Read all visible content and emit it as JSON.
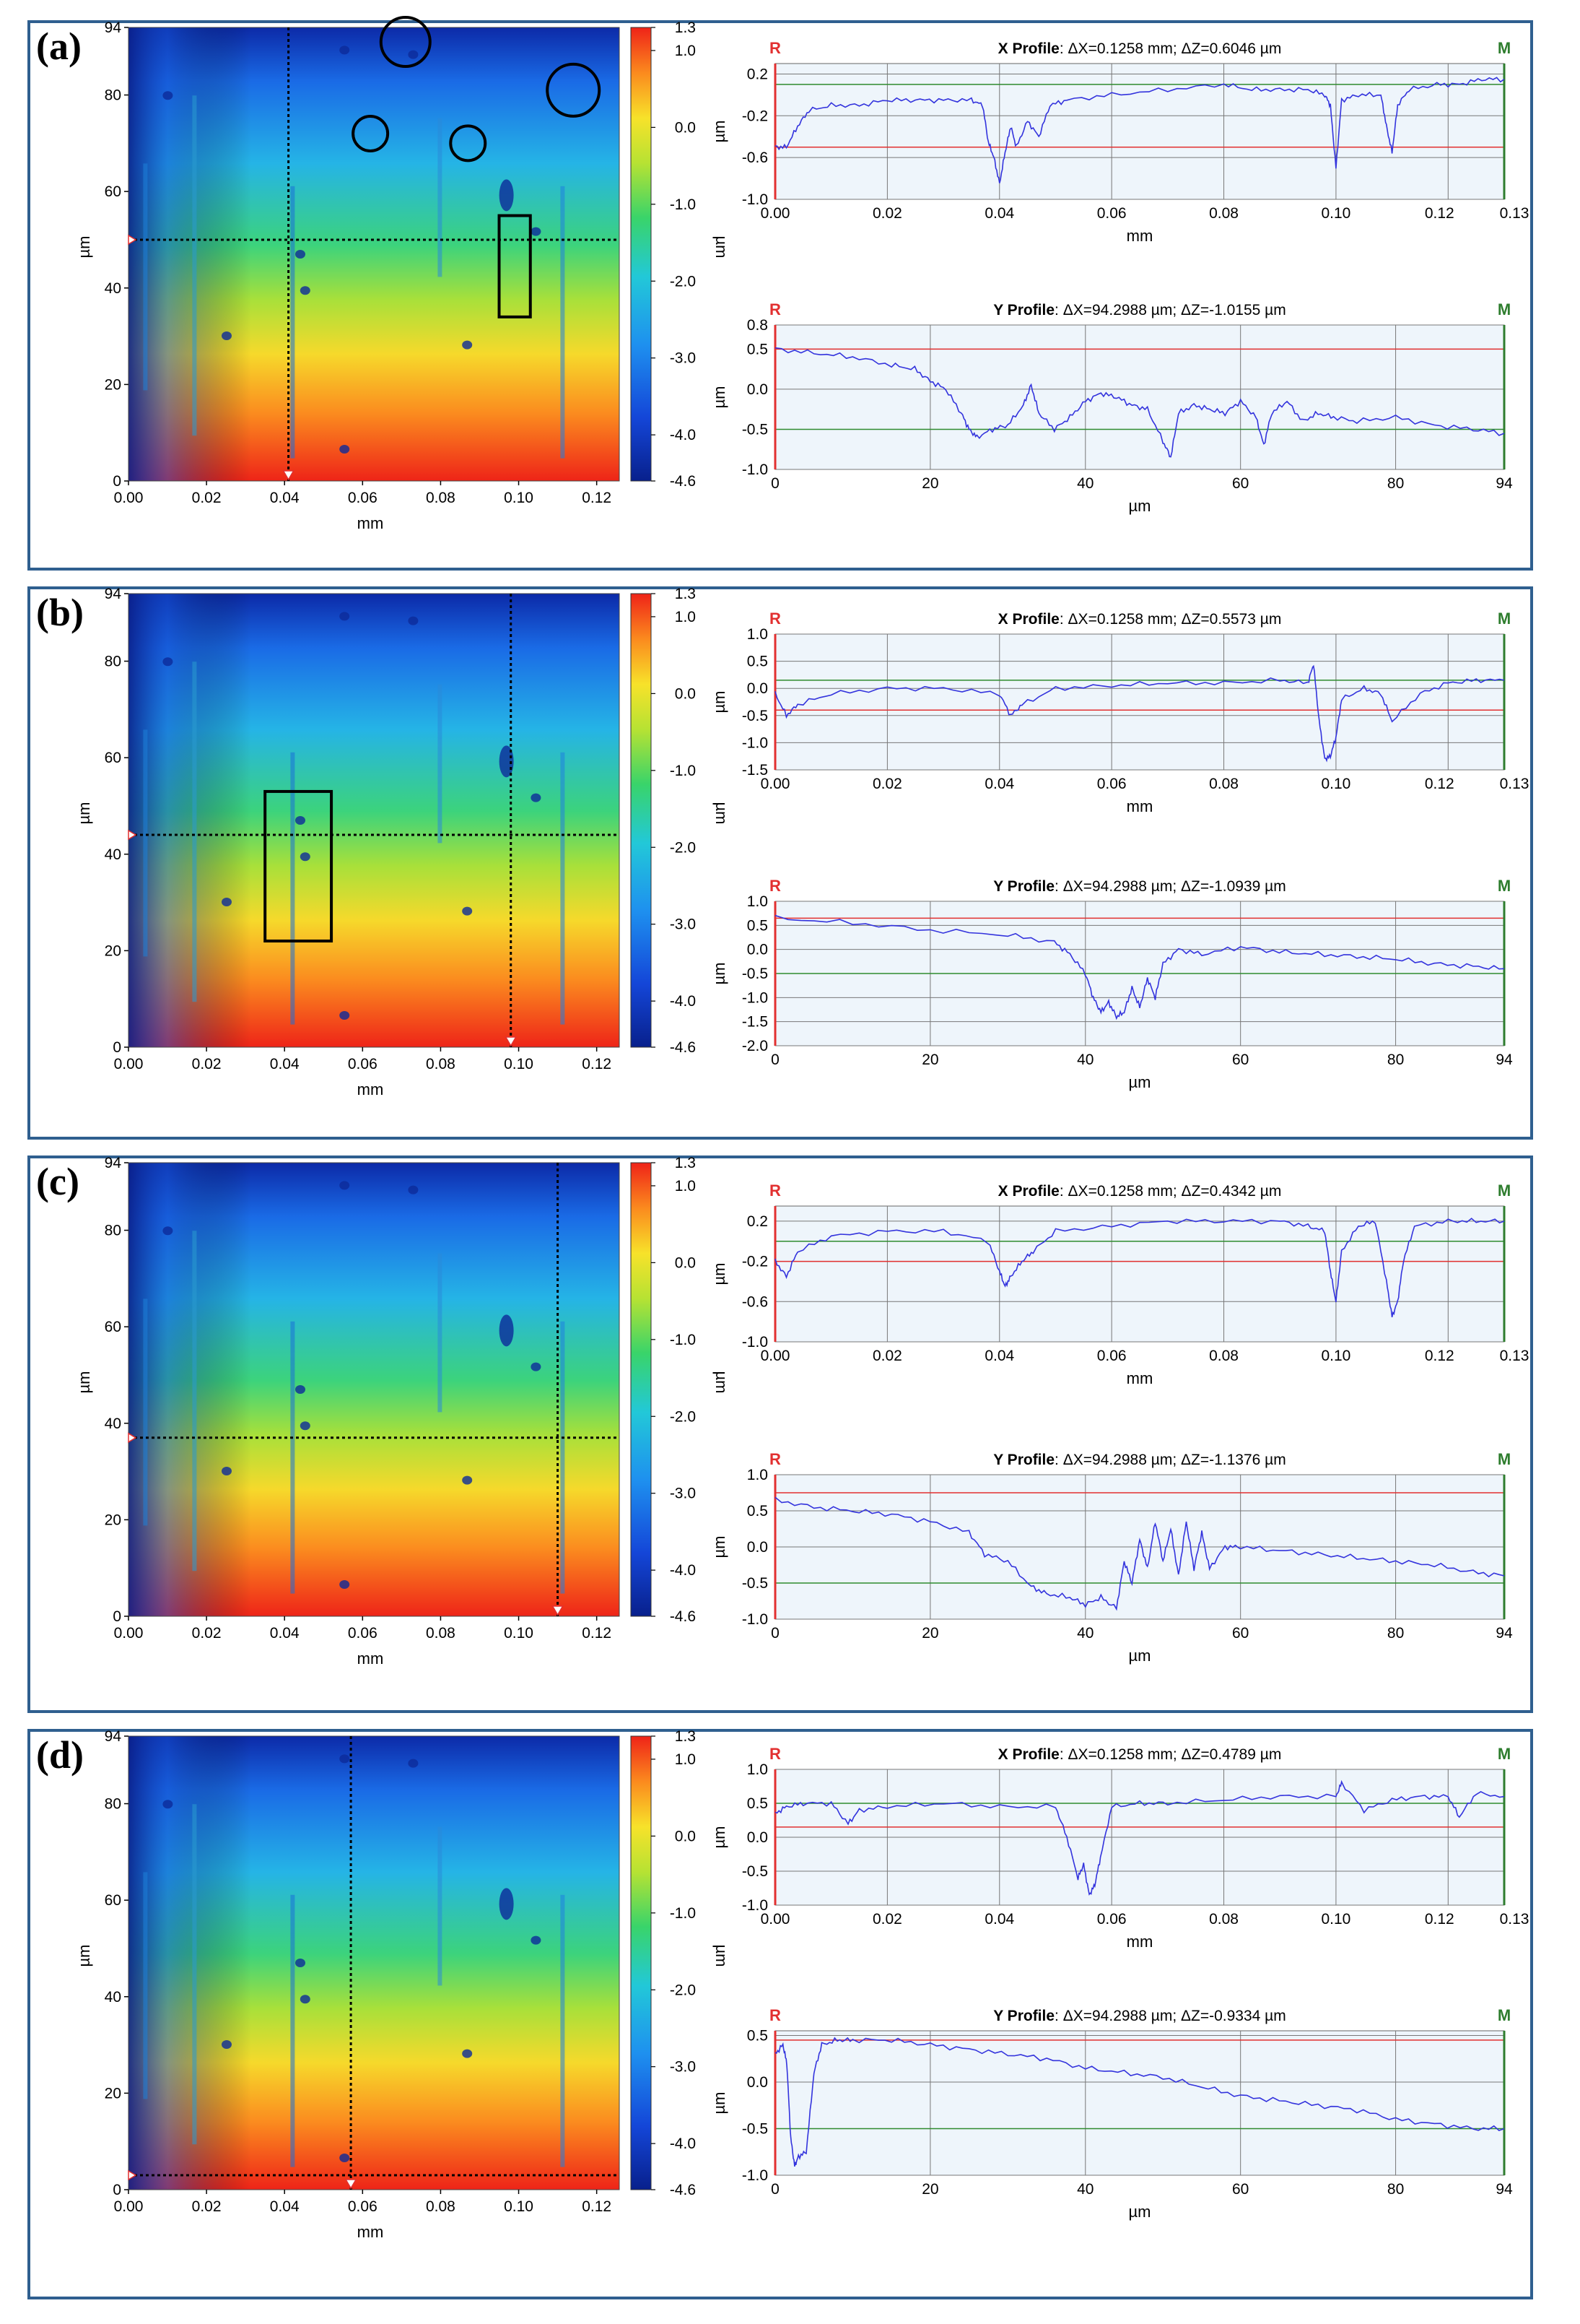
{
  "colors": {
    "border": "#2f5f8f",
    "profile": "#3333dd",
    "red_ref": "#e23030",
    "green_ref": "#2e8b2e",
    "r_marker": "#e23030",
    "m_marker": "#2e7d2e"
  },
  "labels": {
    "r_marker": "R",
    "m_marker": "M",
    "map_ylabel": "µm",
    "map_xlabel": "mm",
    "cbar_label": "µm",
    "xprof_xlabel": "mm",
    "yprof_xlabel": "µm",
    "prof_ylabel": "µm",
    "x_profile_bold": "X Profile",
    "y_profile_bold": "Y Profile"
  },
  "chart_data": [
    {
      "panel": "(a)",
      "type": "line",
      "height_map": {
        "xlabel": "mm",
        "ylabel": "µm",
        "x_ticks": [
          "0.00",
          "0.02",
          "0.04",
          "0.06",
          "0.08",
          "0.10",
          "0.12"
        ],
        "xlim": [
          0,
          0.1258
        ],
        "y_ticks": [
          "0",
          "20",
          "40",
          "60",
          "80",
          "94"
        ],
        "ylim": [
          0,
          94
        ],
        "colorbar": {
          "label": "µm",
          "ticks": [
            "1.3",
            "1.0",
            "0.0",
            "-1.0",
            "-2.0",
            "-3.0",
            "-4.0",
            "-4.6"
          ],
          "range": [
            -4.6,
            1.3
          ]
        },
        "vertical_cut_x_mm": 0.041,
        "horizontal_cut_y_um": 50,
        "annotations": [
          {
            "shape": "circle",
            "x_mm": 0.071,
            "y_um": 91
          },
          {
            "shape": "circle",
            "x_mm": 0.062,
            "y_um": 72
          },
          {
            "shape": "circle",
            "x_mm": 0.087,
            "y_um": 70
          },
          {
            "shape": "circle",
            "x_mm": 0.114,
            "y_um": 81
          },
          {
            "shape": "rect",
            "x_mm": [
              0.095,
              0.103
            ],
            "y_um": [
              34,
              55
            ]
          }
        ]
      },
      "x_profile": {
        "title": "X Profile",
        "stats": ": ΔX=0.1258 mm; ΔZ=0.6046 µm",
        "xlabel": "mm",
        "ylabel": "µm",
        "x_ticks": [
          "0.00",
          "0.02",
          "0.04",
          "0.06",
          "0.08",
          "0.10",
          "0.12",
          "0.13"
        ],
        "xlim": [
          0,
          0.13
        ],
        "y_ticks": [
          "0.2",
          "-0.2",
          "-0.6",
          "-1.0"
        ],
        "ylim": [
          -1.0,
          0.3
        ],
        "ref_red": -0.5,
        "ref_green": 0.1,
        "x": [
          0,
          0.002,
          0.004,
          0.006,
          0.01,
          0.015,
          0.02,
          0.025,
          0.03,
          0.035,
          0.037,
          0.038,
          0.039,
          0.04,
          0.041,
          0.042,
          0.043,
          0.045,
          0.047,
          0.049,
          0.052,
          0.06,
          0.07,
          0.08,
          0.085,
          0.09,
          0.095,
          0.098,
          0.099,
          0.1,
          0.101,
          0.104,
          0.108,
          0.109,
          0.11,
          0.111,
          0.113,
          0.118,
          0.122,
          0.126,
          0.13
        ],
        "values": [
          -0.5,
          -0.5,
          -0.3,
          -0.15,
          -0.1,
          -0.1,
          -0.05,
          -0.05,
          -0.05,
          -0.05,
          -0.1,
          -0.45,
          -0.6,
          -0.85,
          -0.55,
          -0.3,
          -0.5,
          -0.25,
          -0.4,
          -0.1,
          -0.05,
          0.0,
          0.05,
          0.1,
          0.05,
          0.05,
          0.05,
          0.0,
          -0.1,
          -0.7,
          -0.05,
          0.0,
          0.0,
          -0.3,
          -0.55,
          -0.1,
          0.05,
          0.1,
          0.1,
          0.15,
          0.15
        ]
      },
      "y_profile": {
        "title": "Y Profile",
        "stats": ": ΔX=94.2988 µm; ΔZ=-1.0155 µm",
        "xlabel": "µm",
        "ylabel": "µm",
        "x_ticks": [
          "0",
          "20",
          "40",
          "60",
          "80",
          "94"
        ],
        "xlim": [
          0,
          94
        ],
        "y_ticks": [
          "0.8",
          "0.5",
          "0.0",
          "-0.5",
          "-1.0"
        ],
        "ylim": [
          -1.0,
          0.8
        ],
        "ref_red": 0.5,
        "ref_green": -0.5,
        "x": [
          0,
          5,
          10,
          15,
          18,
          20,
          22,
          24,
          25,
          26,
          28,
          30,
          32,
          33,
          34,
          36,
          38,
          40,
          42,
          44,
          46,
          48,
          50,
          51,
          52,
          54,
          56,
          58,
          60,
          62,
          63,
          64,
          66,
          68,
          70,
          72,
          75,
          80,
          85,
          90,
          94
        ],
        "values": [
          0.5,
          0.45,
          0.4,
          0.3,
          0.25,
          0.1,
          0.0,
          -0.3,
          -0.5,
          -0.6,
          -0.5,
          -0.45,
          -0.2,
          0.05,
          -0.3,
          -0.5,
          -0.35,
          -0.15,
          -0.05,
          -0.1,
          -0.2,
          -0.25,
          -0.65,
          -0.85,
          -0.3,
          -0.2,
          -0.25,
          -0.3,
          -0.15,
          -0.35,
          -0.7,
          -0.3,
          -0.15,
          -0.4,
          -0.3,
          -0.35,
          -0.4,
          -0.35,
          -0.45,
          -0.5,
          -0.55
        ]
      }
    },
    {
      "panel": "(b)",
      "type": "line",
      "height_map": {
        "xlabel": "mm",
        "ylabel": "µm",
        "x_ticks": [
          "0.00",
          "0.02",
          "0.04",
          "0.06",
          "0.08",
          "0.10",
          "0.12"
        ],
        "xlim": [
          0,
          0.1258
        ],
        "y_ticks": [
          "0",
          "20",
          "40",
          "60",
          "80",
          "94"
        ],
        "ylim": [
          0,
          94
        ],
        "colorbar": {
          "label": "µm",
          "ticks": [
            "1.3",
            "1.0",
            "0.0",
            "-1.0",
            "-2.0",
            "-3.0",
            "-4.0",
            "-4.6"
          ],
          "range": [
            -4.6,
            1.3
          ]
        },
        "vertical_cut_x_mm": 0.098,
        "horizontal_cut_y_um": 44,
        "annotations": [
          {
            "shape": "rect",
            "x_mm": [
              0.035,
              0.052
            ],
            "y_um": [
              22,
              53
            ]
          }
        ]
      },
      "x_profile": {
        "title": "X Profile",
        "stats": ": ΔX=0.1258 mm; ΔZ=0.5573 µm",
        "xlabel": "mm",
        "ylabel": "µm",
        "x_ticks": [
          "0.00",
          "0.02",
          "0.04",
          "0.06",
          "0.08",
          "0.10",
          "0.12",
          "0.13"
        ],
        "xlim": [
          0,
          0.13
        ],
        "y_ticks": [
          "1.0",
          "0.5",
          "0.0",
          "-0.5",
          "-1.0",
          "-1.5"
        ],
        "ylim": [
          -1.5,
          1.0
        ],
        "ref_red": -0.4,
        "ref_green": 0.15,
        "x": [
          0,
          0.002,
          0.004,
          0.01,
          0.02,
          0.03,
          0.04,
          0.042,
          0.044,
          0.05,
          0.06,
          0.07,
          0.08,
          0.09,
          0.095,
          0.096,
          0.097,
          0.098,
          0.099,
          0.1,
          0.101,
          0.105,
          0.108,
          0.11,
          0.115,
          0.12,
          0.125,
          0.13
        ],
        "values": [
          -0.1,
          -0.5,
          -0.3,
          -0.1,
          0.0,
          0.0,
          -0.1,
          -0.5,
          -0.3,
          0.0,
          0.05,
          0.1,
          0.1,
          0.15,
          0.1,
          0.45,
          -0.6,
          -1.3,
          -1.25,
          -0.9,
          -0.2,
          0.0,
          -0.1,
          -0.6,
          -0.1,
          0.1,
          0.15,
          0.15
        ]
      },
      "y_profile": {
        "title": "Y Profile",
        "stats": ": ΔX=94.2988 µm; ΔZ=-1.0939 µm",
        "xlabel": "µm",
        "ylabel": "µm",
        "x_ticks": [
          "0",
          "20",
          "40",
          "60",
          "80",
          "94"
        ],
        "xlim": [
          0,
          94
        ],
        "y_ticks": [
          "1.0",
          "0.5",
          "0.0",
          "-0.5",
          "-1.0",
          "-1.5",
          "-2.0"
        ],
        "ylim": [
          -2.0,
          1.0
        ],
        "ref_red": 0.65,
        "ref_green": -0.5,
        "x": [
          0,
          10,
          20,
          30,
          36,
          38,
          40,
          41,
          42,
          43,
          44,
          45,
          46,
          47,
          48,
          49,
          50,
          52,
          55,
          60,
          65,
          70,
          75,
          80,
          85,
          90,
          94
        ],
        "values": [
          0.65,
          0.55,
          0.4,
          0.3,
          0.15,
          -0.1,
          -0.5,
          -1.0,
          -1.3,
          -1.1,
          -1.4,
          -1.3,
          -0.8,
          -1.2,
          -0.6,
          -1.0,
          -0.3,
          0.0,
          -0.1,
          0.05,
          -0.05,
          -0.1,
          -0.15,
          -0.2,
          -0.3,
          -0.35,
          -0.4
        ]
      }
    },
    {
      "panel": "(c)",
      "type": "line",
      "height_map": {
        "xlabel": "mm",
        "ylabel": "µm",
        "x_ticks": [
          "0.00",
          "0.02",
          "0.04",
          "0.06",
          "0.08",
          "0.10",
          "0.12"
        ],
        "xlim": [
          0,
          0.1258
        ],
        "y_ticks": [
          "0",
          "20",
          "40",
          "60",
          "80",
          "94"
        ],
        "ylim": [
          0,
          94
        ],
        "colorbar": {
          "label": "µm",
          "ticks": [
            "1.3",
            "1.0",
            "0.0",
            "-1.0",
            "-2.0",
            "-3.0",
            "-4.0",
            "-4.6"
          ],
          "range": [
            -4.6,
            1.3
          ]
        },
        "vertical_cut_x_mm": 0.11,
        "horizontal_cut_y_um": 37,
        "annotations": []
      },
      "x_profile": {
        "title": "X Profile",
        "stats": ": ΔX=0.1258 mm; ΔZ=0.4342 µm",
        "xlabel": "mm",
        "ylabel": "µm",
        "x_ticks": [
          "0.00",
          "0.02",
          "0.04",
          "0.06",
          "0.08",
          "0.10",
          "0.12",
          "0.13"
        ],
        "xlim": [
          0,
          0.13
        ],
        "y_ticks": [
          "0.2",
          "-0.2",
          "-0.6",
          "-1.0"
        ],
        "ylim": [
          -1.0,
          0.35
        ],
        "ref_red": -0.2,
        "ref_green": 0.0,
        "x": [
          0,
          0.002,
          0.004,
          0.01,
          0.02,
          0.03,
          0.038,
          0.04,
          0.041,
          0.042,
          0.044,
          0.046,
          0.05,
          0.06,
          0.07,
          0.08,
          0.09,
          0.095,
          0.098,
          0.099,
          0.1,
          0.101,
          0.104,
          0.107,
          0.109,
          0.11,
          0.111,
          0.112,
          0.114,
          0.12,
          0.125,
          0.13
        ],
        "values": [
          -0.2,
          -0.35,
          -0.1,
          0.05,
          0.1,
          0.1,
          0.0,
          -0.3,
          -0.45,
          -0.35,
          -0.2,
          -0.1,
          0.1,
          0.15,
          0.2,
          0.2,
          0.2,
          0.15,
          0.1,
          -0.3,
          -0.6,
          -0.1,
          0.15,
          0.2,
          -0.4,
          -0.75,
          -0.6,
          -0.2,
          0.15,
          0.2,
          0.2,
          0.2
        ]
      },
      "y_profile": {
        "title": "Y Profile",
        "stats": ": ΔX=94.2988 µm; ΔZ=-1.1376 µm",
        "xlabel": "µm",
        "ylabel": "µm",
        "x_ticks": [
          "0",
          "20",
          "40",
          "60",
          "80",
          "94"
        ],
        "xlim": [
          0,
          94
        ],
        "y_ticks": [
          "1.0",
          "0.5",
          "0.0",
          "-0.5",
          "-1.0"
        ],
        "ylim": [
          -1.0,
          1.0
        ],
        "ref_red": 0.75,
        "ref_green": -0.5,
        "x": [
          0,
          5,
          10,
          15,
          20,
          25,
          27,
          30,
          33,
          35,
          38,
          40,
          42,
          44,
          45,
          46,
          47,
          48,
          49,
          50,
          51,
          52,
          53,
          54,
          55,
          56,
          58,
          60,
          65,
          70,
          75,
          80,
          85,
          90,
          94
        ],
        "values": [
          0.65,
          0.55,
          0.5,
          0.45,
          0.35,
          0.2,
          -0.1,
          -0.2,
          -0.55,
          -0.65,
          -0.7,
          -0.8,
          -0.7,
          -0.85,
          -0.2,
          -0.5,
          0.1,
          -0.3,
          0.35,
          -0.2,
          0.25,
          -0.4,
          0.35,
          -0.3,
          0.2,
          -0.3,
          0.0,
          0.0,
          -0.05,
          -0.1,
          -0.15,
          -0.2,
          -0.25,
          -0.35,
          -0.4
        ]
      }
    },
    {
      "panel": "(d)",
      "type": "line",
      "height_map": {
        "xlabel": "mm",
        "ylabel": "µm",
        "x_ticks": [
          "0.00",
          "0.02",
          "0.04",
          "0.06",
          "0.08",
          "0.10",
          "0.12"
        ],
        "xlim": [
          0,
          0.1258
        ],
        "y_ticks": [
          "0",
          "20",
          "40",
          "60",
          "80",
          "94"
        ],
        "ylim": [
          0,
          94
        ],
        "colorbar": {
          "label": "µm",
          "ticks": [
            "1.3",
            "1.0",
            "0.0",
            "-1.0",
            "-2.0",
            "-3.0",
            "-4.0",
            "-4.6"
          ],
          "range": [
            -4.6,
            1.3
          ]
        },
        "vertical_cut_x_mm": 0.057,
        "horizontal_cut_y_um": 3,
        "annotations": []
      },
      "x_profile": {
        "title": "X Profile",
        "stats": ": ΔX=0.1258 mm; ΔZ=0.4789 µm",
        "xlabel": "mm",
        "ylabel": "µm",
        "x_ticks": [
          "0.00",
          "0.02",
          "0.04",
          "0.06",
          "0.08",
          "0.10",
          "0.12",
          "0.13"
        ],
        "xlim": [
          0,
          0.13
        ],
        "y_ticks": [
          "1.0",
          "0.5",
          "0.0",
          "-0.5",
          "-1.0"
        ],
        "ylim": [
          -1.0,
          1.0
        ],
        "ref_red": 0.15,
        "ref_green": 0.5,
        "x": [
          0,
          0.002,
          0.005,
          0.01,
          0.013,
          0.015,
          0.02,
          0.03,
          0.04,
          0.05,
          0.052,
          0.054,
          0.055,
          0.056,
          0.057,
          0.058,
          0.06,
          0.065,
          0.07,
          0.08,
          0.09,
          0.1,
          0.101,
          0.105,
          0.11,
          0.115,
          0.12,
          0.122,
          0.125,
          0.13
        ],
        "values": [
          0.35,
          0.45,
          0.5,
          0.5,
          0.2,
          0.4,
          0.45,
          0.5,
          0.45,
          0.45,
          0.0,
          -0.6,
          -0.4,
          -0.85,
          -0.7,
          -0.3,
          0.45,
          0.5,
          0.5,
          0.55,
          0.6,
          0.6,
          0.8,
          0.4,
          0.55,
          0.6,
          0.6,
          0.3,
          0.65,
          0.6
        ]
      },
      "y_profile": {
        "title": "Y Profile",
        "stats": ": ΔX=94.2988 µm; ΔZ=-0.9334 µm",
        "xlabel": "µm",
        "ylabel": "µm",
        "x_ticks": [
          "0",
          "20",
          "40",
          "60",
          "80",
          "94"
        ],
        "xlim": [
          0,
          94
        ],
        "y_ticks": [
          "0.5",
          "0.0",
          "-0.5",
          "-1.0"
        ],
        "ylim": [
          -1.0,
          0.55
        ],
        "ref_red": 0.45,
        "ref_green": -0.5,
        "x": [
          0,
          1,
          1.5,
          2,
          2.5,
          3,
          4,
          5,
          6,
          8,
          10,
          15,
          20,
          25,
          30,
          35,
          40,
          45,
          50,
          55,
          60,
          65,
          70,
          75,
          80,
          85,
          90,
          94
        ],
        "values": [
          0.3,
          0.4,
          0.2,
          -0.6,
          -0.9,
          -0.8,
          -0.75,
          0.1,
          0.4,
          0.45,
          0.45,
          0.45,
          0.4,
          0.35,
          0.3,
          0.25,
          0.15,
          0.1,
          0.05,
          -0.05,
          -0.15,
          -0.2,
          -0.25,
          -0.3,
          -0.4,
          -0.45,
          -0.5,
          -0.5
        ]
      }
    }
  ]
}
